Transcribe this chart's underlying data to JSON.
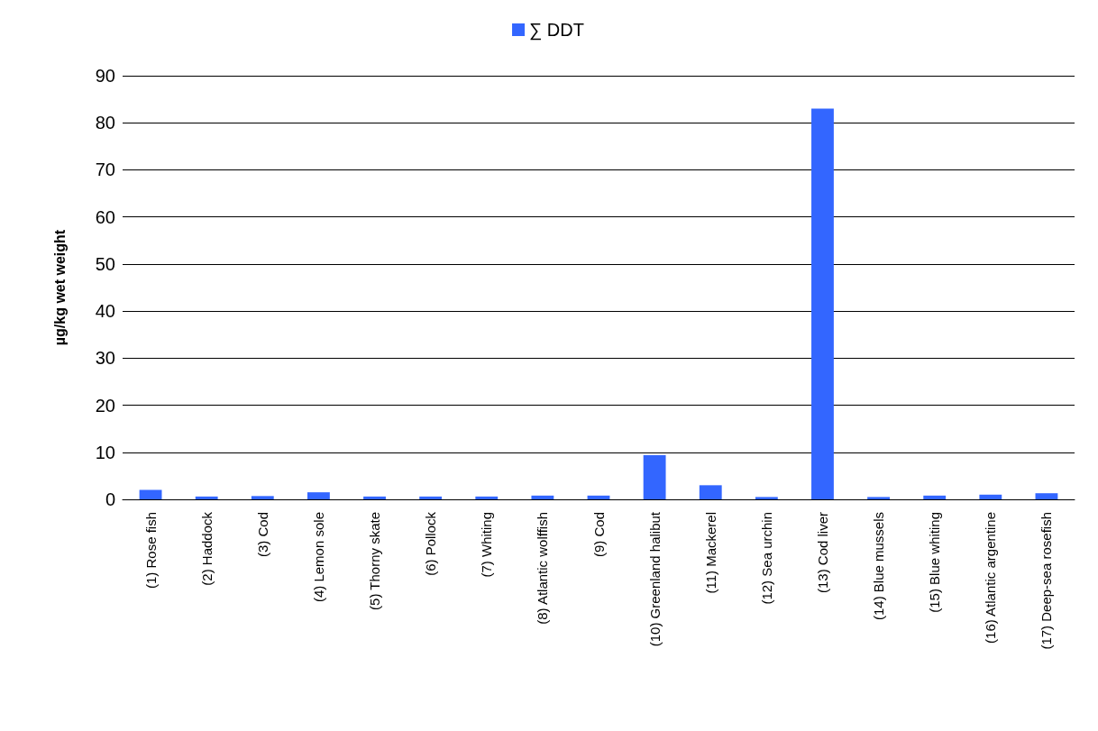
{
  "chart_data": {
    "type": "bar",
    "ylabel": "µg/kg wet weight",
    "categories": [
      "(1) Rose fish",
      "(2) Haddock",
      "(3) Cod",
      "(4) Lemon sole",
      "(5) Thorny skate",
      "(6) Pollock",
      "(7) Whiting",
      "(8) Atlantic wolffish",
      "(9) Cod",
      "(10) Greenland halibut",
      "(11) Mackerel",
      "(12) Sea urchin",
      "(13) Cod liver",
      "(14) Blue mussels",
      "(15) Blue whiting",
      "(16) Atlantic argentine",
      "(17) Deep-sea rosefish"
    ],
    "series": [
      {
        "name": "∑ DDT",
        "color": "#3366ff",
        "values": [
          2.0,
          0.6,
          0.7,
          1.5,
          0.6,
          0.6,
          0.6,
          0.8,
          0.8,
          9.4,
          3.0,
          0.5,
          83,
          0.5,
          0.8,
          1.0,
          1.3
        ]
      }
    ],
    "ylim": [
      0,
      90
    ],
    "yticks": [
      0,
      10,
      20,
      30,
      40,
      50,
      60,
      70,
      80,
      90
    ],
    "grid": "y",
    "legend": "top"
  }
}
